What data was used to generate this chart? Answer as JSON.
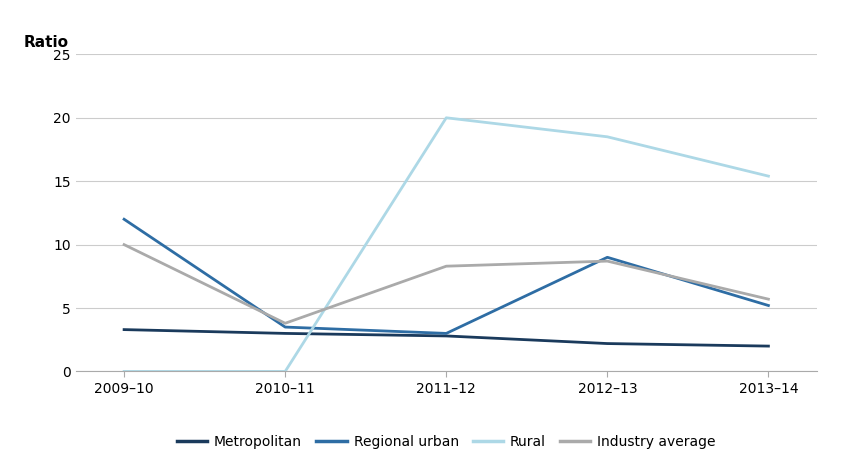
{
  "years": [
    "2009–10",
    "2010–11",
    "2011–12",
    "2012–13",
    "2013–14"
  ],
  "series": {
    "Metropolitan": {
      "values": [
        3.3,
        3.0,
        2.8,
        2.2,
        2.0
      ],
      "color": "#1a3a5c",
      "linewidth": 2.0
    },
    "Regional urban": {
      "values": [
        12.0,
        3.5,
        3.0,
        9.0,
        5.2
      ],
      "color": "#2e6da4",
      "linewidth": 2.0
    },
    "Rural": {
      "values": [
        0.0,
        0.0,
        20.0,
        18.5,
        15.4
      ],
      "color": "#add8e6",
      "linewidth": 2.0
    },
    "Industry average": {
      "values": [
        10.0,
        3.8,
        8.3,
        8.7,
        5.7
      ],
      "color": "#aaaaaa",
      "linewidth": 2.0
    }
  },
  "ratio_label": "Ratio",
  "ylim": [
    0,
    25
  ],
  "yticks": [
    0,
    5,
    10,
    15,
    20,
    25
  ],
  "background_color": "#ffffff",
  "grid_color": "#cccccc",
  "legend_order": [
    "Metropolitan",
    "Regional urban",
    "Rural",
    "Industry average"
  ],
  "tick_fontsize": 10,
  "label_fontsize": 11,
  "legend_fontsize": 10
}
